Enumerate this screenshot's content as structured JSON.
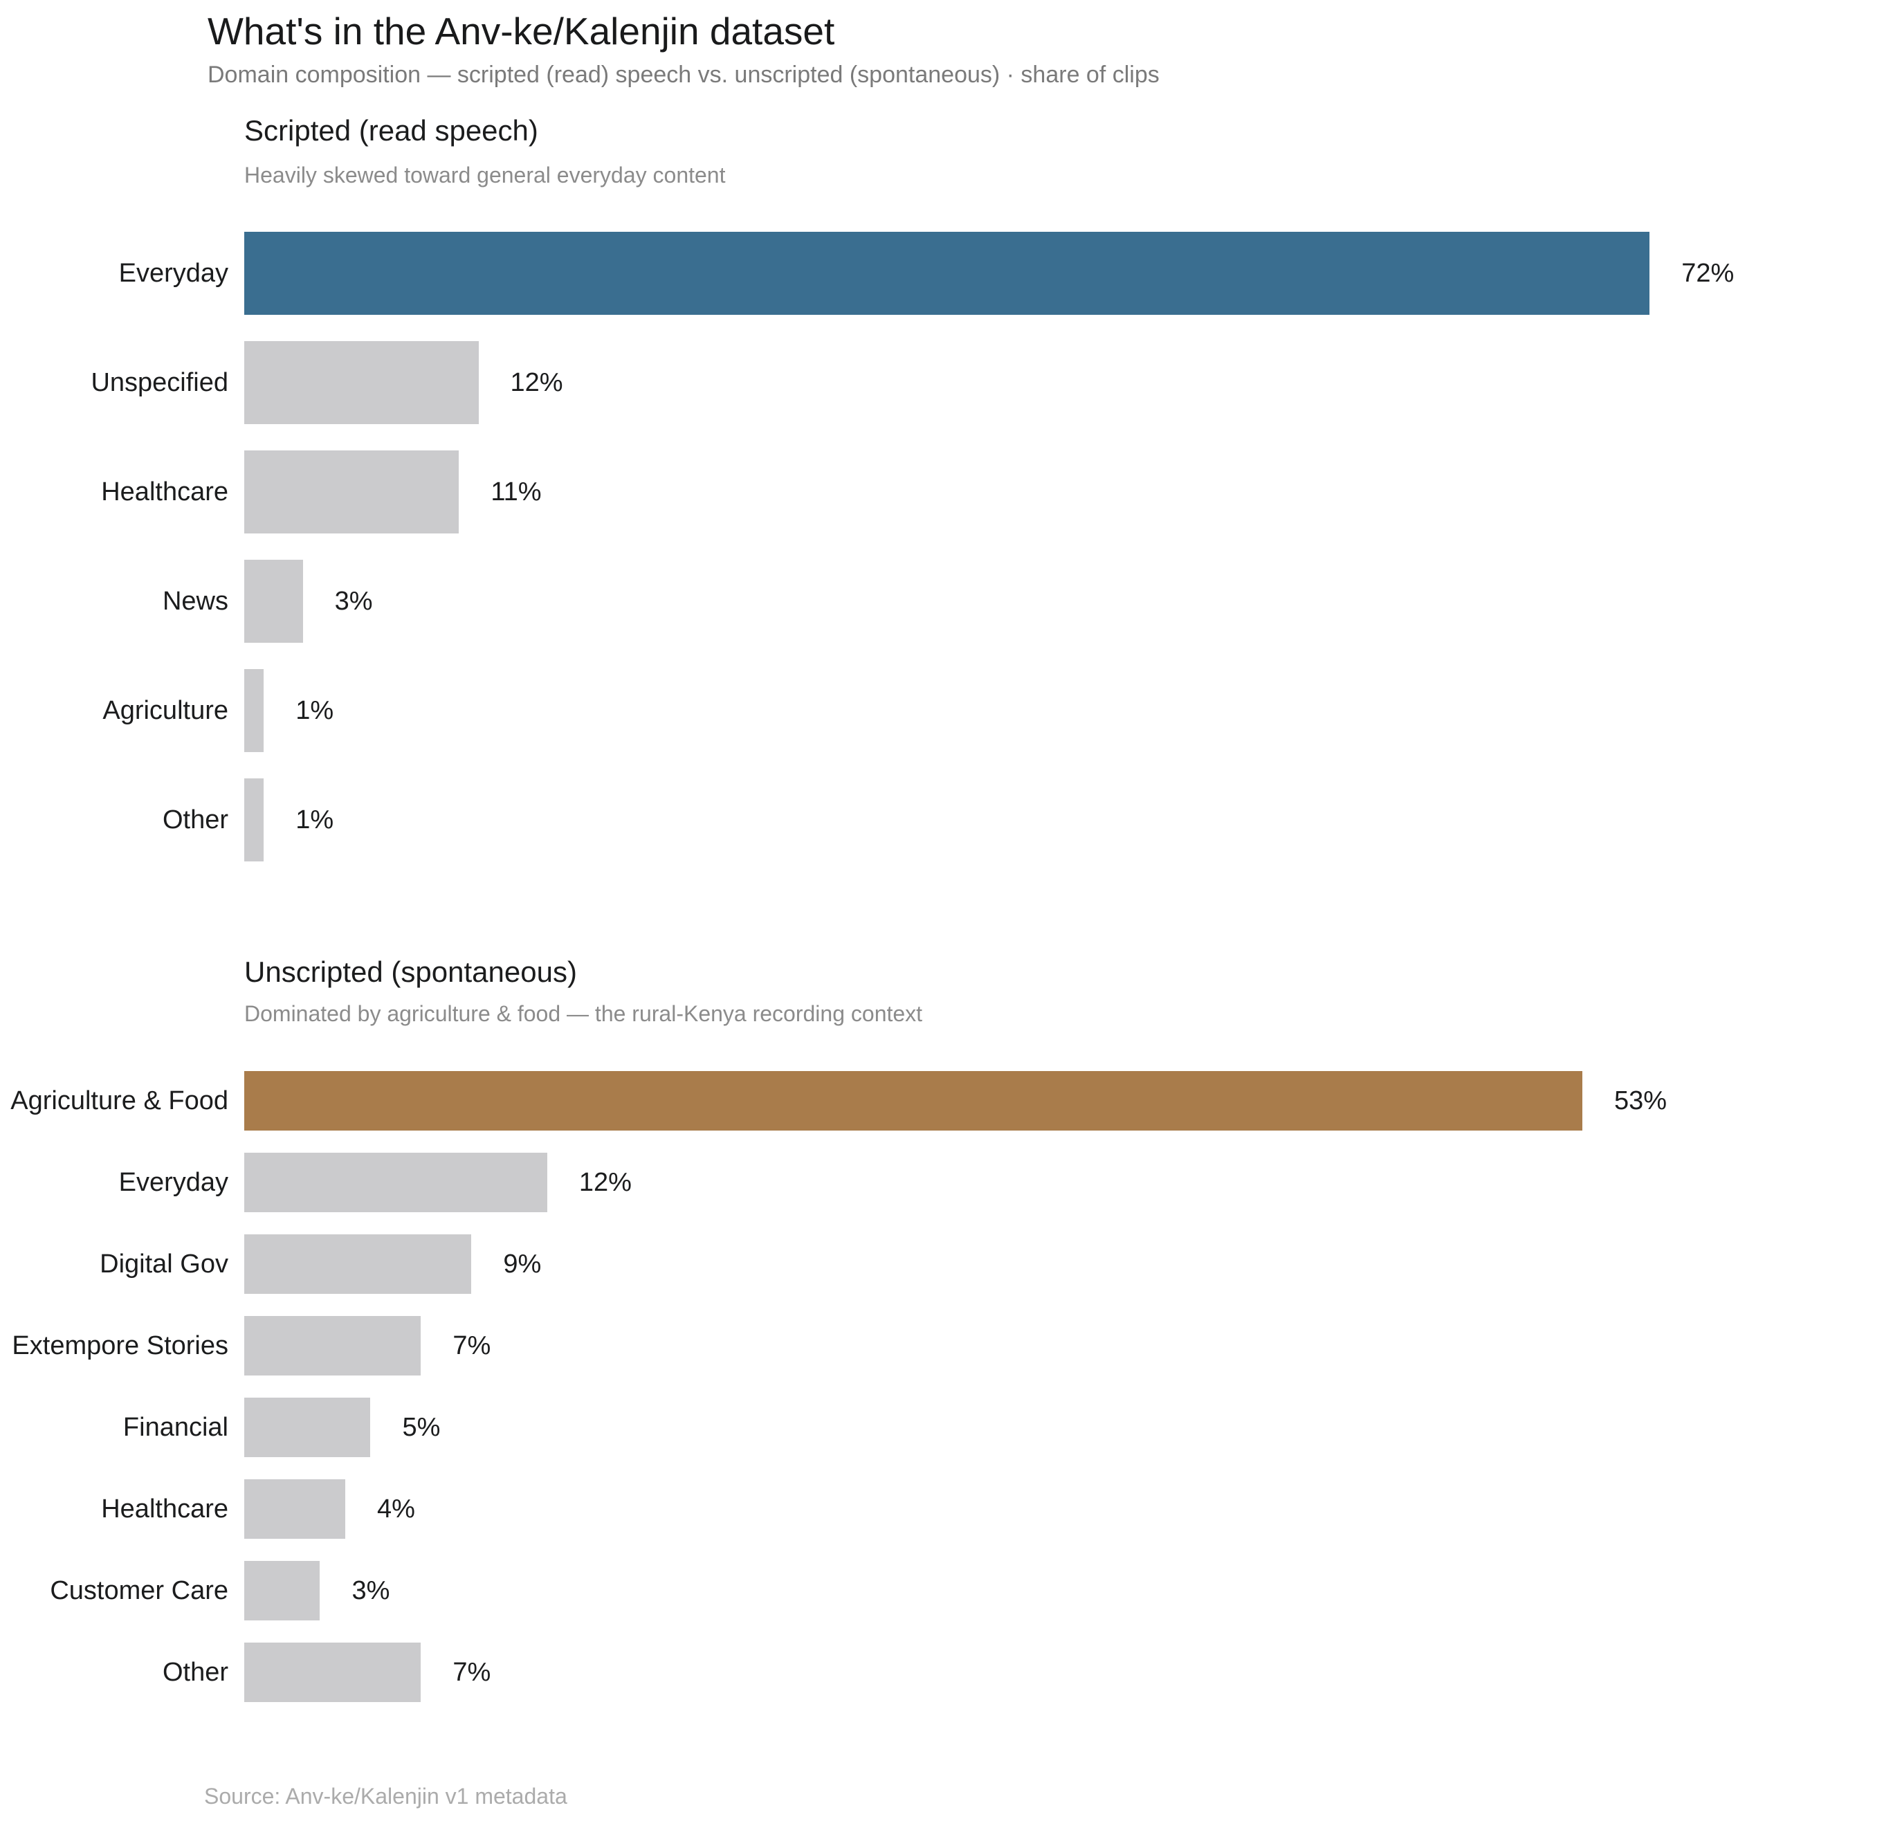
{
  "header": {
    "title": "What's in the Anv-ke/Kalenjin dataset",
    "subtitle": "Domain composition — scripted (read) speech vs. unscripted (spontaneous) · share of clips"
  },
  "colors": {
    "scripted_highlight": "#3A6E90",
    "unscripted_highlight": "#A97C4B",
    "bar_default": "#CBCBCD",
    "title_text": "#191a1b",
    "muted_text": "#8b8b8b",
    "footer_text": "#ababab"
  },
  "chart_data": [
    {
      "type": "bar",
      "orientation": "horizontal",
      "title": "Scripted (read speech)",
      "subtitle": "Heavily skewed toward general everyday content",
      "categories": [
        "Everyday",
        "Unspecified",
        "Healthcare",
        "News",
        "Agriculture",
        "Other"
      ],
      "values": [
        72,
        12,
        11,
        3,
        1,
        1
      ],
      "labels": [
        "72%",
        "12%",
        "11%",
        "3%",
        "1%",
        "1%"
      ],
      "unit": "% share of clips",
      "highlight_index": 0,
      "highlight_color": "#3A6E90",
      "bar_color": "#CBCBCD",
      "xlim": [
        0,
        83.3
      ],
      "grid": false,
      "legend": false
    },
    {
      "type": "bar",
      "orientation": "horizontal",
      "title": "Unscripted (spontaneous)",
      "subtitle": "Dominated by agriculture & food — the rural-Kenya recording context",
      "categories": [
        "Agriculture & Food",
        "Everyday",
        "Digital Gov",
        "Extempore Stories",
        "Financial",
        "Healthcare",
        "Customer Care",
        "Other"
      ],
      "values": [
        53,
        12,
        9,
        7,
        5,
        4,
        3,
        7
      ],
      "labels": [
        "53%",
        "12%",
        "9%",
        "7%",
        "5%",
        "4%",
        "3%",
        "7%"
      ],
      "unit": "% share of clips",
      "highlight_index": 0,
      "highlight_color": "#A97C4B",
      "bar_color": "#CBCBCD",
      "xlim": [
        0,
        64.4
      ],
      "grid": false,
      "legend": false
    }
  ],
  "footer": {
    "source": "Source: Anv-ke/Kalenjin v1 metadata"
  }
}
